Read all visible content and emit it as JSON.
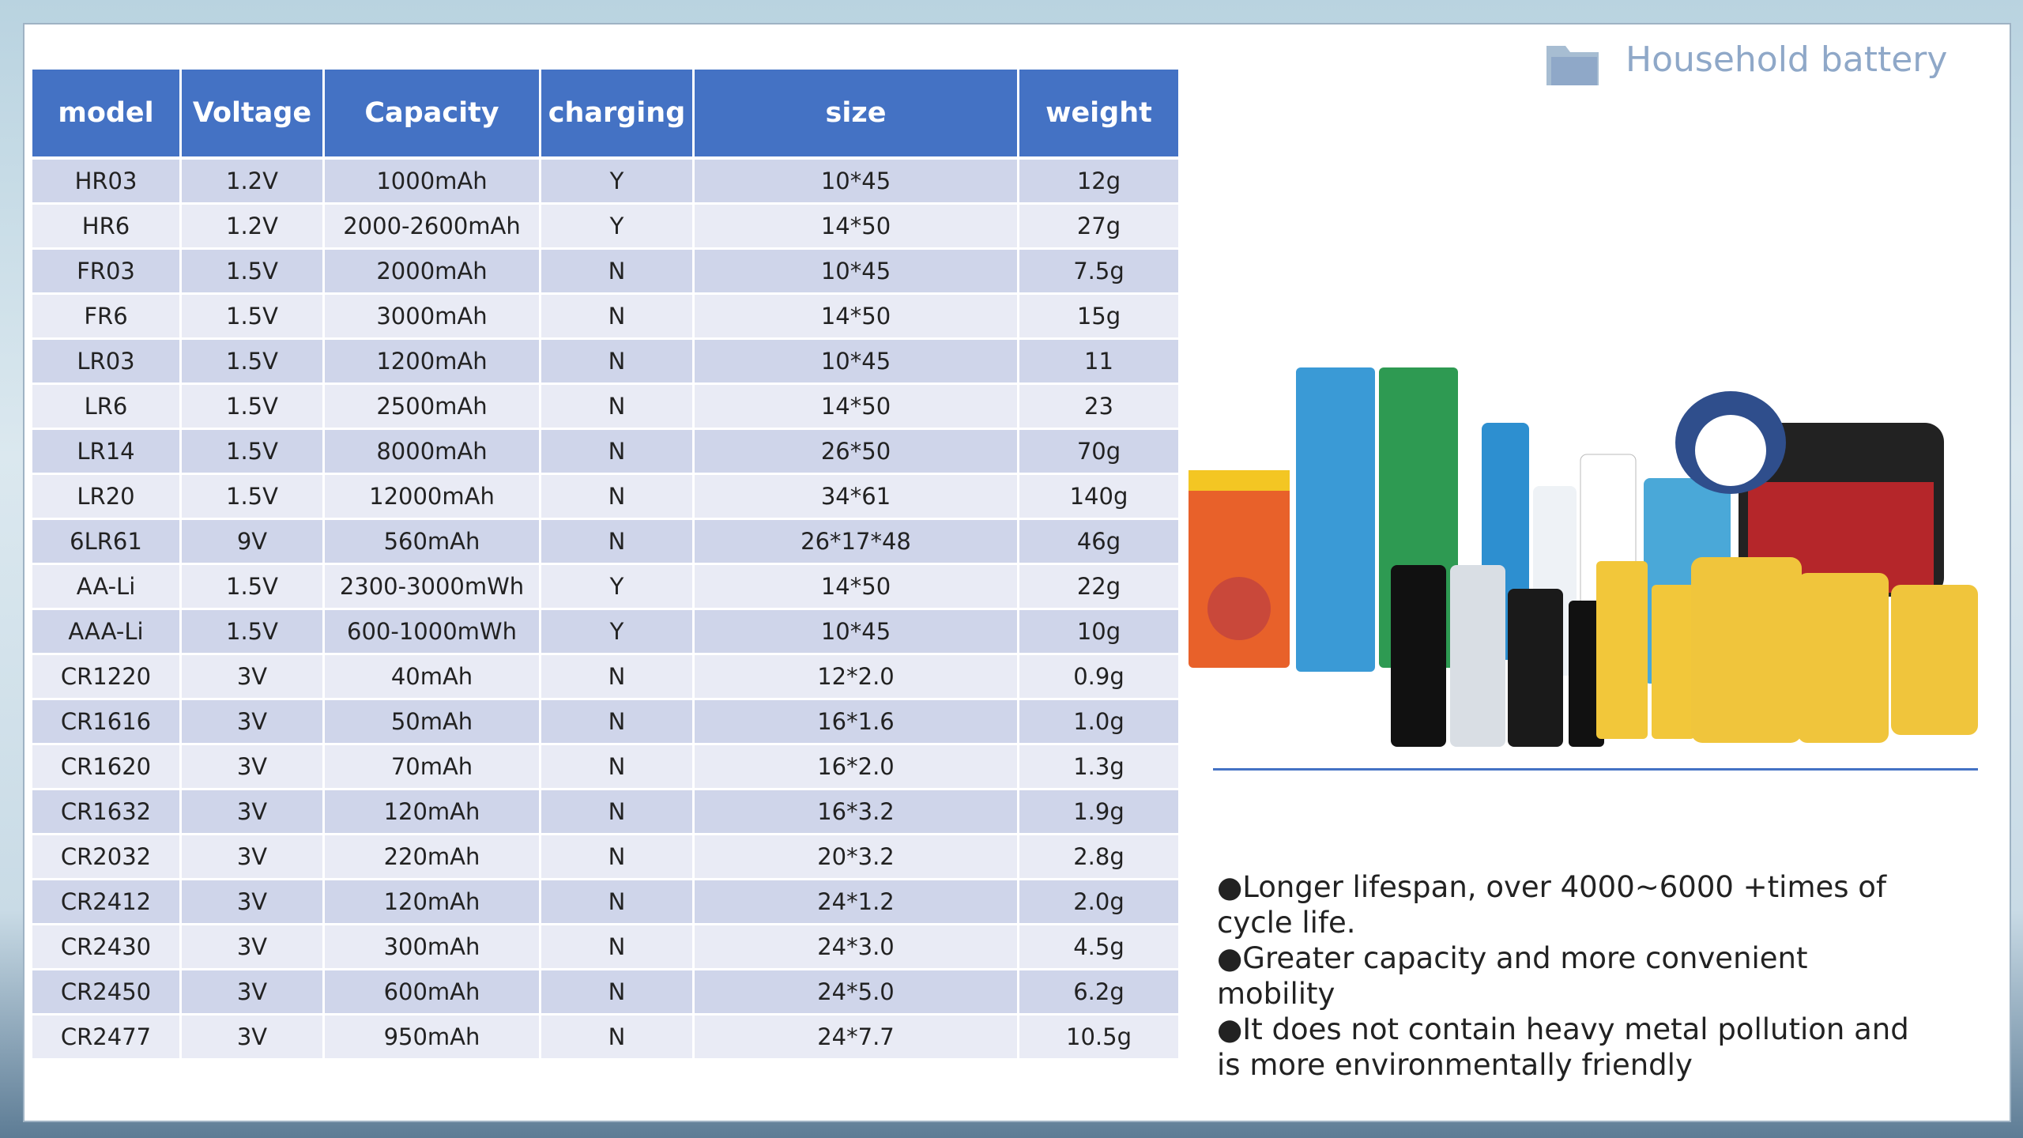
{
  "header": {
    "title": "Household battery"
  },
  "table": {
    "columns": [
      "model",
      "Voltage",
      "Capacity",
      "charging",
      "size",
      "weight"
    ],
    "rows": [
      [
        "HR03",
        "1.2V",
        "1000mAh",
        "Y",
        "10*45",
        "12g"
      ],
      [
        "HR6",
        "1.2V",
        "2000-2600mAh",
        "Y",
        "14*50",
        "27g"
      ],
      [
        "FR03",
        "1.5V",
        "2000mAh",
        "N",
        "10*45",
        "7.5g"
      ],
      [
        "FR6",
        "1.5V",
        "3000mAh",
        "N",
        "14*50",
        "15g"
      ],
      [
        "LR03",
        "1.5V",
        "1200mAh",
        "N",
        "10*45",
        "11"
      ],
      [
        "LR6",
        "1.5V",
        "2500mAh",
        "N",
        "14*50",
        "23"
      ],
      [
        "LR14",
        "1.5V",
        "8000mAh",
        "N",
        "26*50",
        "70g"
      ],
      [
        "LR20",
        "1.5V",
        "12000mAh",
        "N",
        "34*61",
        "140g"
      ],
      [
        "6LR61",
        "9V",
        "560mAh",
        "N",
        "26*17*48",
        "46g"
      ],
      [
        "AA-Li",
        "1.5V",
        "2300-3000mWh",
        "Y",
        "14*50",
        "22g"
      ],
      [
        "AAA-Li",
        "1.5V",
        "600-1000mWh",
        "Y",
        "10*45",
        "10g"
      ],
      [
        "CR1220",
        "3V",
        "40mAh",
        "N",
        "12*2.0",
        "0.9g"
      ],
      [
        "CR1616",
        "3V",
        "50mAh",
        "N",
        "16*1.6",
        "1.0g"
      ],
      [
        "CR1620",
        "3V",
        "70mAh",
        "N",
        "16*2.0",
        "1.3g"
      ],
      [
        "CR1632",
        "3V",
        "120mAh",
        "N",
        "16*3.2",
        "1.9g"
      ],
      [
        "CR2032",
        "3V",
        "220mAh",
        "N",
        "20*3.2",
        "2.8g"
      ],
      [
        "CR2412",
        "3V",
        "120mAh",
        "N",
        "24*1.2",
        "2.0g"
      ],
      [
        "CR2430",
        "3V",
        "300mAh",
        "N",
        "24*3.0",
        "4.5g"
      ],
      [
        "CR2450",
        "3V",
        "600mAh",
        "N",
        "24*5.0",
        "6.2g"
      ],
      [
        "CR2477",
        "3V",
        "950mAh",
        "N",
        "24*7.7",
        "10.5g"
      ]
    ]
  },
  "bullets": [
    "●Longer lifespan, over 4000~6000 +times of cycle life.",
    "●Greater capacity and more convenient mobility",
    "●It does not contain heavy metal pollution and is more environmentally friendly"
  ]
}
